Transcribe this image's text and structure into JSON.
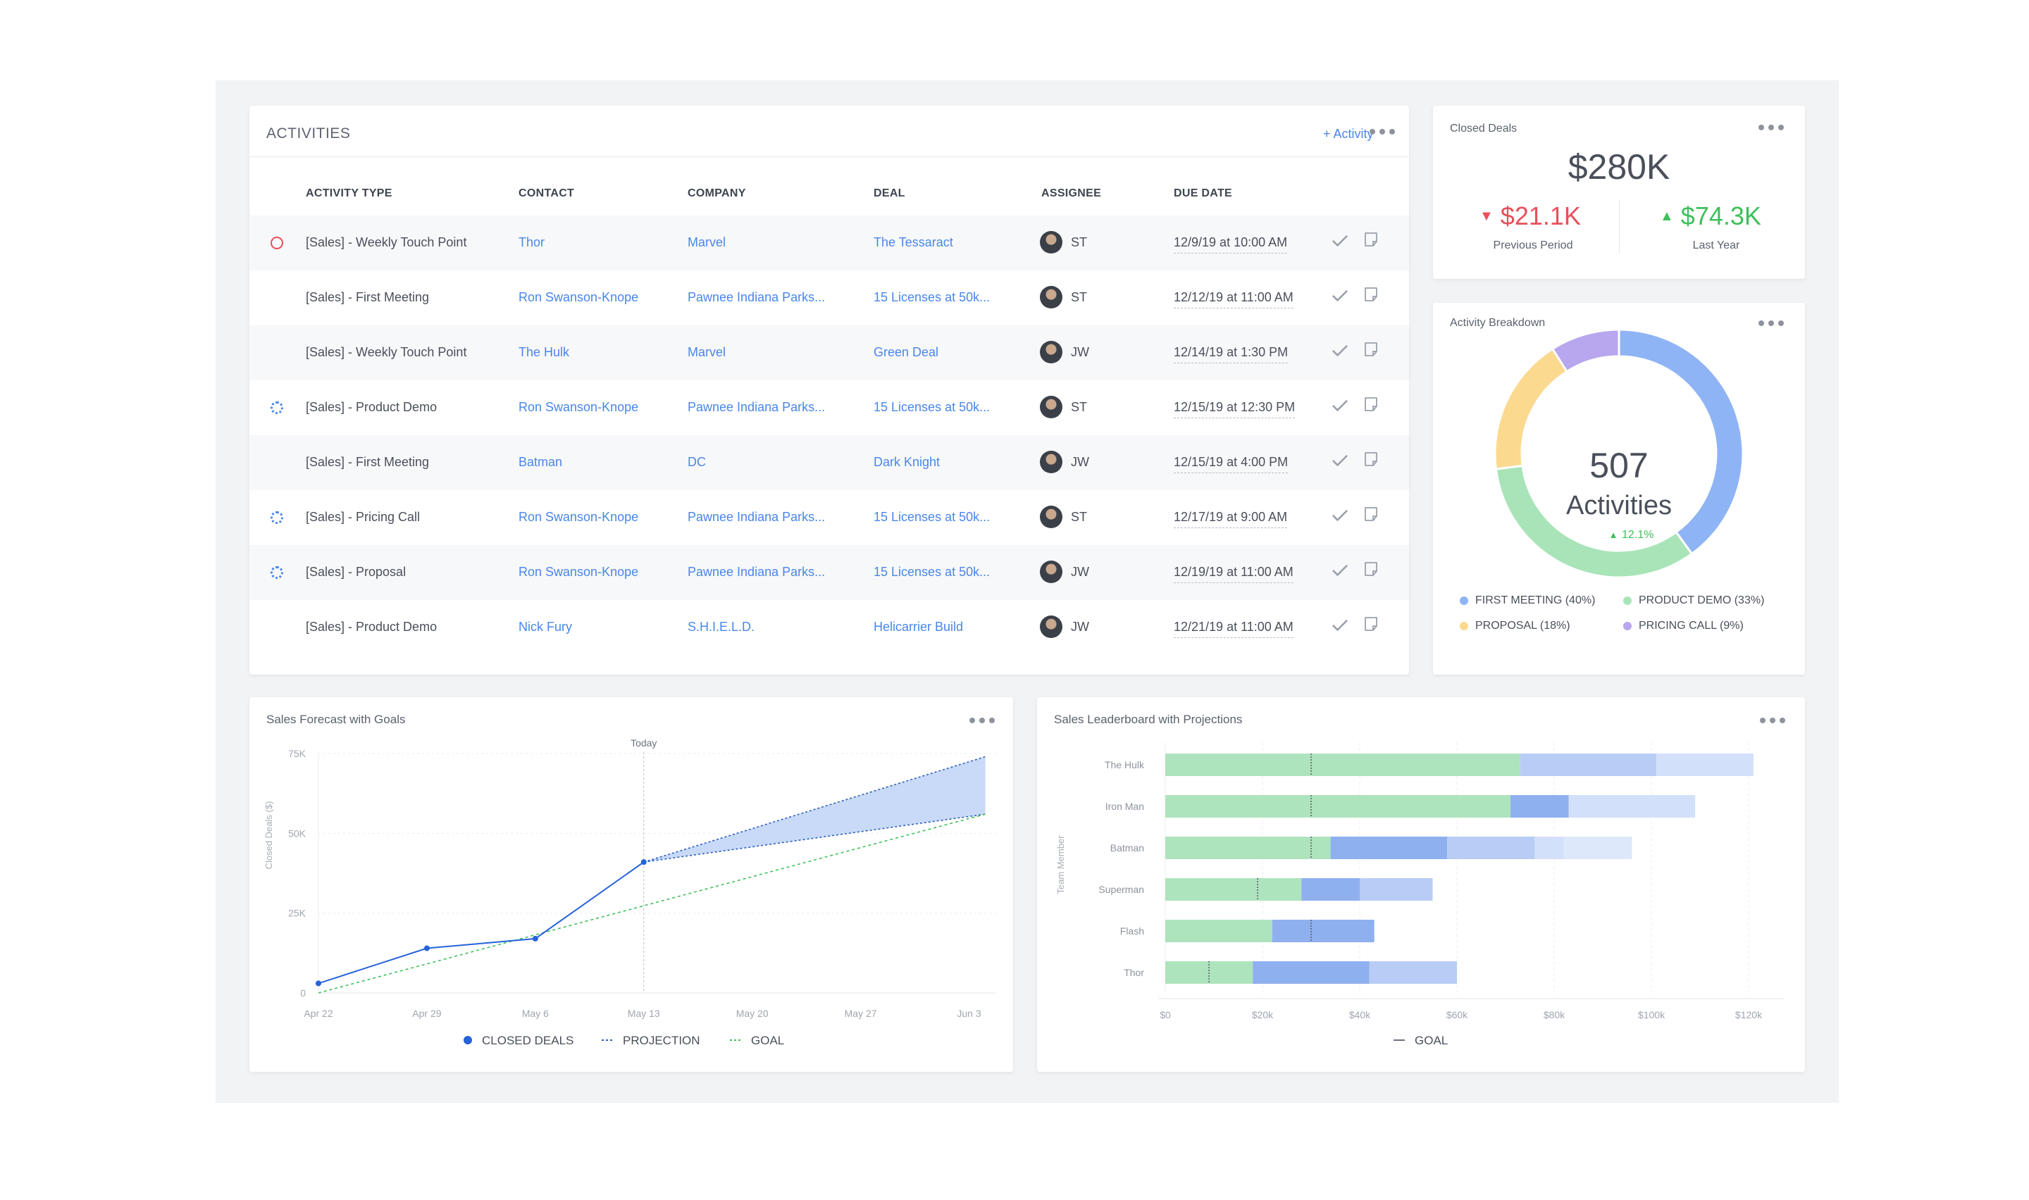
{
  "activities": {
    "title": "ACTIVITIES",
    "add_label": "+ Activity",
    "columns": [
      "ACTIVITY TYPE",
      "CONTACT",
      "COMPANY",
      "DEAL",
      "ASSIGNEE",
      "DUE DATE"
    ],
    "rows": [
      {
        "status": "red",
        "type": "[Sales] - Weekly Touch Point",
        "contact": "Thor",
        "company": "Marvel",
        "deal": "The Tessaract",
        "assignee": "ST",
        "due": "12/9/19 at 10:00 AM"
      },
      {
        "status": "none",
        "type": "[Sales] - First Meeting",
        "contact": "Ron Swanson-Knope",
        "company": "Pawnee Indiana Parks...",
        "deal": "15 Licenses at 50k...",
        "assignee": "ST",
        "due": "12/12/19 at 11:00 AM"
      },
      {
        "status": "none",
        "type": "[Sales] - Weekly Touch Point",
        "contact": "The Hulk",
        "company": "Marvel",
        "deal": "Green Deal",
        "assignee": "JW",
        "due": "12/14/19 at 1:30 PM"
      },
      {
        "status": "blue",
        "type": "[Sales] - Product Demo",
        "contact": "Ron Swanson-Knope",
        "company": "Pawnee Indiana Parks...",
        "deal": "15 Licenses at 50k...",
        "assignee": "ST",
        "due": "12/15/19 at 12:30 PM"
      },
      {
        "status": "none",
        "type": "[Sales] - First Meeting",
        "contact": "Batman",
        "company": "DC",
        "deal": "Dark Knight",
        "assignee": "JW",
        "due": "12/15/19 at 4:00 PM"
      },
      {
        "status": "blue",
        "type": "[Sales] - Pricing Call",
        "contact": "Ron Swanson-Knope",
        "company": "Pawnee Indiana Parks...",
        "deal": "15 Licenses at 50k...",
        "assignee": "ST",
        "due": "12/17/19 at 9:00 AM"
      },
      {
        "status": "blue",
        "type": "[Sales] - Proposal",
        "contact": "Ron Swanson-Knope",
        "company": "Pawnee Indiana Parks...",
        "deal": "15 Licenses at 50k...",
        "assignee": "JW",
        "due": "12/19/19 at 11:00 AM"
      },
      {
        "status": "none",
        "type": "[Sales] - Product Demo",
        "contact": "Nick Fury",
        "company": "S.H.I.E.L.D.",
        "deal": "Helicarrier Build",
        "assignee": "JW",
        "due": "12/21/19 at 11:00 AM"
      }
    ]
  },
  "closed_deals": {
    "title": "Closed Deals",
    "total": "$280K",
    "previous_value": "$21.1K",
    "previous_label": "Previous Period",
    "last_year_value": "$74.3K",
    "last_year_label": "Last Year"
  },
  "breakdown": {
    "title": "Activity Breakdown",
    "total": "507",
    "total_label": "Activities",
    "change": "12.1%",
    "legend": [
      "FIRST MEETING (40%)",
      "PRODUCT DEMO (33%)",
      "PROPOSAL (18%)",
      "PRICING CALL (9%)"
    ]
  },
  "forecast": {
    "title": "Sales Forecast with Goals",
    "today_label": "Today",
    "y_label": "Closed Deals ($)",
    "legend": [
      "CLOSED DEALS",
      "PROJECTION",
      "GOAL"
    ]
  },
  "leaderboard": {
    "title": "Sales Leaderboard with Projections",
    "y_label": "Team Member",
    "legend": [
      "GOAL"
    ]
  },
  "colors": {
    "accent": "#4a86e8",
    "red": "#e8505b",
    "green": "#3fbf5a",
    "first_meeting": "#8fb4f5",
    "product_demo": "#a9e4b8",
    "proposal": "#fbd98f",
    "pricing_call": "#b8a6ee"
  },
  "chart_data": [
    {
      "type": "pie",
      "title": "Activity Breakdown",
      "categories": [
        "FIRST MEETING",
        "PRODUCT DEMO",
        "PROPOSAL",
        "PRICING CALL"
      ],
      "values": [
        40,
        33,
        18,
        9
      ]
    },
    {
      "type": "line",
      "title": "Sales Forecast with Goals",
      "ylabel": "Closed Deals ($)",
      "x_ticks": [
        "Apr 22",
        "Apr 29",
        "May 6",
        "May 13",
        "May 20",
        "May 27",
        "Jun 3"
      ],
      "y_ticks": [
        "0",
        "25K",
        "50K",
        "75K"
      ],
      "ylim": [
        0,
        75000
      ],
      "today": "May 13",
      "series": [
        {
          "name": "CLOSED DEALS",
          "x": [
            "Apr 22",
            "Apr 29",
            "May 6",
            "May 13"
          ],
          "values": [
            3000,
            14000,
            17000,
            41000
          ]
        },
        {
          "name": "PROJECTION",
          "x": [
            "May 13",
            "Jun 4"
          ],
          "upper": [
            41000,
            74000
          ],
          "lower": [
            41000,
            56000
          ]
        },
        {
          "name": "GOAL",
          "x": [
            "Apr 22",
            "Jun 4"
          ],
          "values": [
            0,
            56000
          ]
        }
      ]
    },
    {
      "type": "bar",
      "title": "Sales Leaderboard with Projections",
      "ylabel": "Team Member",
      "categories": [
        "The Hulk",
        "Iron Man",
        "Batman",
        "Superman",
        "Flash",
        "Thor"
      ],
      "x_ticks": [
        "$0",
        "$20k",
        "$40k",
        "$60k",
        "$80k",
        "$100k",
        "$120k"
      ],
      "xlim": [
        0,
        120000
      ],
      "series": [
        {
          "name": "closed",
          "values": [
            73000,
            71000,
            34000,
            28000,
            22000,
            18000
          ]
        },
        {
          "name": "projected",
          "values": [
            0,
            12000,
            24000,
            12000,
            21000,
            24000
          ]
        },
        {
          "name": "projection high",
          "values": [
            28000,
            0,
            18000,
            15000,
            0,
            18000
          ]
        },
        {
          "name": "projection range",
          "values": [
            20000,
            26000,
            6000,
            0,
            0,
            0
          ]
        },
        {
          "name": "projection max",
          "values": [
            0,
            0,
            14000,
            0,
            0,
            0
          ]
        }
      ],
      "goals": [
        30000,
        30000,
        30000,
        19000,
        30000,
        9000
      ]
    }
  ]
}
